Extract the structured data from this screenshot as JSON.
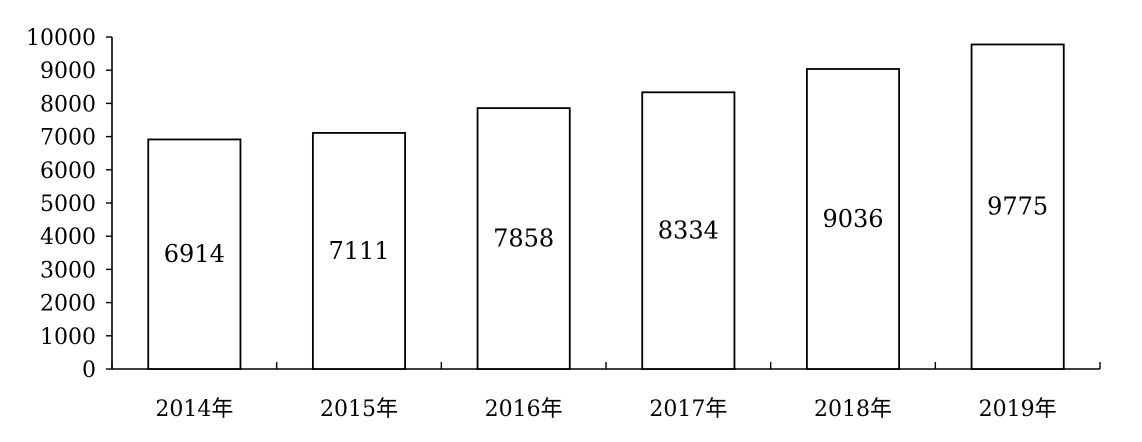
{
  "chart_data": {
    "type": "bar",
    "categories": [
      "2014年",
      "2015年",
      "2016年",
      "2017年",
      "2018年",
      "2019年"
    ],
    "values": [
      6914,
      7111,
      7858,
      8334,
      9036,
      9775
    ],
    "data_labels": [
      "6914",
      "7111",
      "7858",
      "8334",
      "9036",
      "9775"
    ],
    "title": "",
    "xlabel": "",
    "ylabel": "",
    "ylim": [
      0,
      10000
    ],
    "yticks": [
      0,
      1000,
      2000,
      3000,
      4000,
      5000,
      6000,
      7000,
      8000,
      9000,
      10000
    ],
    "ytick_labels": [
      "0",
      "1000",
      "2000",
      "3000",
      "4000",
      "5000",
      "6000",
      "7000",
      "8000",
      "9000",
      "10000"
    ],
    "grid": false,
    "legend": "none",
    "colors": {
      "bar_fill": "#ffffff",
      "bar_stroke": "#000000",
      "axis": "#000000",
      "text": "#000000"
    }
  }
}
